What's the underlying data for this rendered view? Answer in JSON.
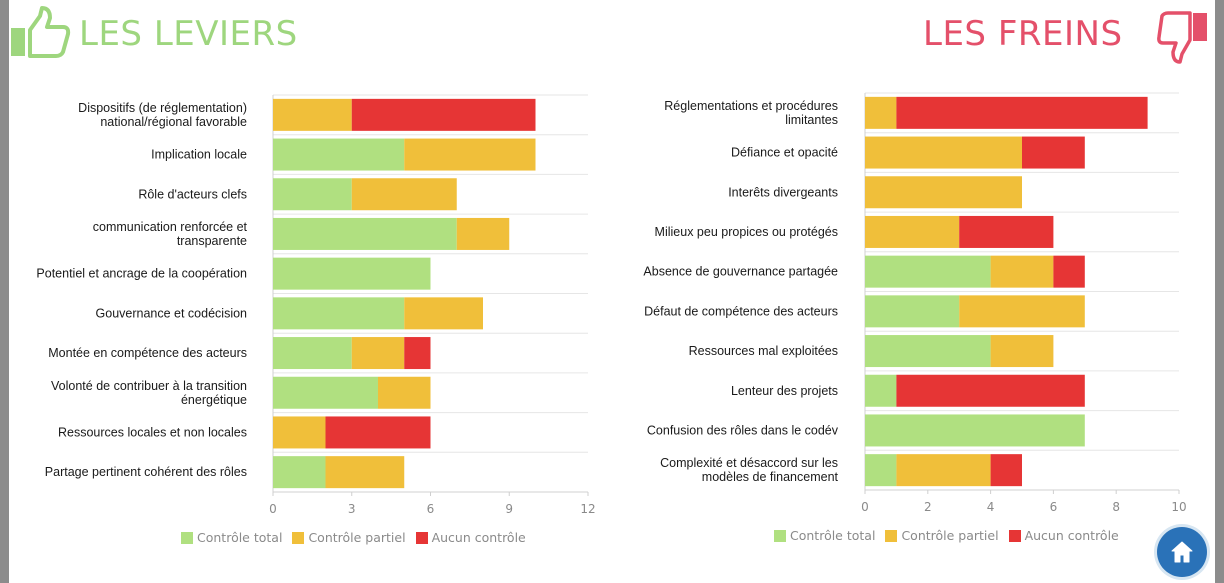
{
  "header": {
    "left_title": "LES LEVIERS",
    "right_title": "LES FREINS"
  },
  "icons": {
    "left": "thumbs-up-icon",
    "right": "thumbs-down-icon",
    "home": "home-icon"
  },
  "colors": {
    "total": "#b0e080",
    "partiel": "#f0bf3a",
    "aucun": "#e63535",
    "left_title": "#9ed67e",
    "right_title": "#e4506a",
    "home_button": "#2a72b8"
  },
  "legend": [
    "Contrôle total",
    "Contrôle partiel",
    "Aucun contrôle"
  ],
  "chart_data": [
    {
      "type": "bar",
      "orientation": "horizontal",
      "stacked": true,
      "categories": [
        [
          "Dispositifs (de réglementation)",
          "national/régional favorable"
        ],
        [
          "Implication locale"
        ],
        [
          "Rôle d'acteurs clefs"
        ],
        [
          "communication renforcée et",
          "transparente"
        ],
        [
          "Potentiel et ancrage de la coopération"
        ],
        [
          "Gouvernance et codécision"
        ],
        [
          "Montée en compétence des acteurs"
        ],
        [
          "Volonté de contribuer à la transition",
          "énergétique"
        ],
        [
          "Ressources locales et non locales"
        ],
        [
          "Partage pertinent cohérent des rôles"
        ]
      ],
      "series": [
        {
          "name": "Contrôle total",
          "values": [
            0,
            5,
            3,
            7,
            6,
            5,
            3,
            4,
            0,
            2
          ]
        },
        {
          "name": "Contrôle partiel",
          "values": [
            3,
            5,
            4,
            2,
            0,
            3,
            2,
            2,
            2,
            3
          ]
        },
        {
          "name": "Aucun contrôle",
          "values": [
            7,
            0,
            0,
            0,
            0,
            0,
            1,
            0,
            4,
            0
          ]
        }
      ],
      "xlim": [
        0,
        12
      ],
      "xticks": [
        "0",
        "3",
        "6",
        "9",
        "12"
      ],
      "grid": true,
      "legend_position": "bottom"
    },
    {
      "type": "bar",
      "orientation": "horizontal",
      "stacked": true,
      "categories": [
        [
          "Réglementations et procédures",
          "limitantes"
        ],
        [
          "Défiance et opacité"
        ],
        [
          "Interêts divergeants"
        ],
        [
          "Milieux peu propices ou protégés"
        ],
        [
          "Absence de gouvernance partagée"
        ],
        [
          "Défaut de compétence des acteurs"
        ],
        [
          "Ressources mal exploitées"
        ],
        [
          "Lenteur des projets"
        ],
        [
          "Confusion des rôles dans le codév"
        ],
        [
          "Complexité et désaccord sur les",
          "modèles de financement"
        ]
      ],
      "series": [
        {
          "name": "Contrôle total",
          "values": [
            0,
            0,
            0,
            0,
            4,
            3,
            4,
            1,
            7,
            1
          ]
        },
        {
          "name": "Contrôle partiel",
          "values": [
            1,
            5,
            5,
            3,
            2,
            4,
            2,
            0,
            0,
            3
          ]
        },
        {
          "name": "Aucun contrôle",
          "values": [
            8,
            2,
            0,
            3,
            1,
            0,
            0,
            6,
            0,
            1
          ]
        }
      ],
      "xlim": [
        0,
        10
      ],
      "xticks": [
        "0",
        "2",
        "4",
        "6",
        "8",
        "10"
      ],
      "grid": true,
      "legend_position": "bottom"
    }
  ]
}
